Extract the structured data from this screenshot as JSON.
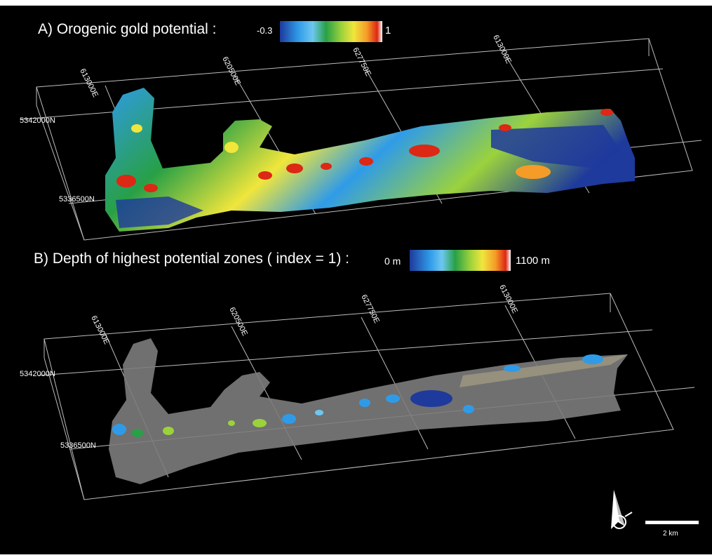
{
  "panel_a": {
    "title": "A) Orogenic gold  potential :",
    "colorbar_min": "-0.3",
    "colorbar_max": "1",
    "easting_labels": [
      "613000E",
      "620500E",
      "627750E",
      "613000E"
    ],
    "northing_labels": [
      "5342000N",
      "5336500N"
    ]
  },
  "panel_b": {
    "title": "B) Depth of highest potential zones ( index = 1) :",
    "colorbar_min": "0 m",
    "colorbar_max": "1100 m",
    "easting_labels": [
      "613000E",
      "620500E",
      "627750E",
      "613000E"
    ],
    "northing_labels": [
      "5342000N",
      "5336500N"
    ]
  },
  "scale_bar": {
    "label": "2 km"
  },
  "north_arrow": {
    "icon": "north-arrow-icon"
  },
  "colors": {
    "background": "#000000",
    "frame": "#bdbdbd",
    "potential_ramp": [
      "#1e3a9c",
      "#2f9be8",
      "#6ec7f0",
      "#28a046",
      "#9bd23c",
      "#f0e63c",
      "#f59b28",
      "#dc2814",
      "#ffffff"
    ],
    "depth_ramp": [
      "#1e3a9c",
      "#2f9be8",
      "#6ec7f0",
      "#28a046",
      "#9bd23c",
      "#f0e63c",
      "#f59b28",
      "#dc2814",
      "#ffffff"
    ],
    "body_grey": "#7c7c7c"
  }
}
